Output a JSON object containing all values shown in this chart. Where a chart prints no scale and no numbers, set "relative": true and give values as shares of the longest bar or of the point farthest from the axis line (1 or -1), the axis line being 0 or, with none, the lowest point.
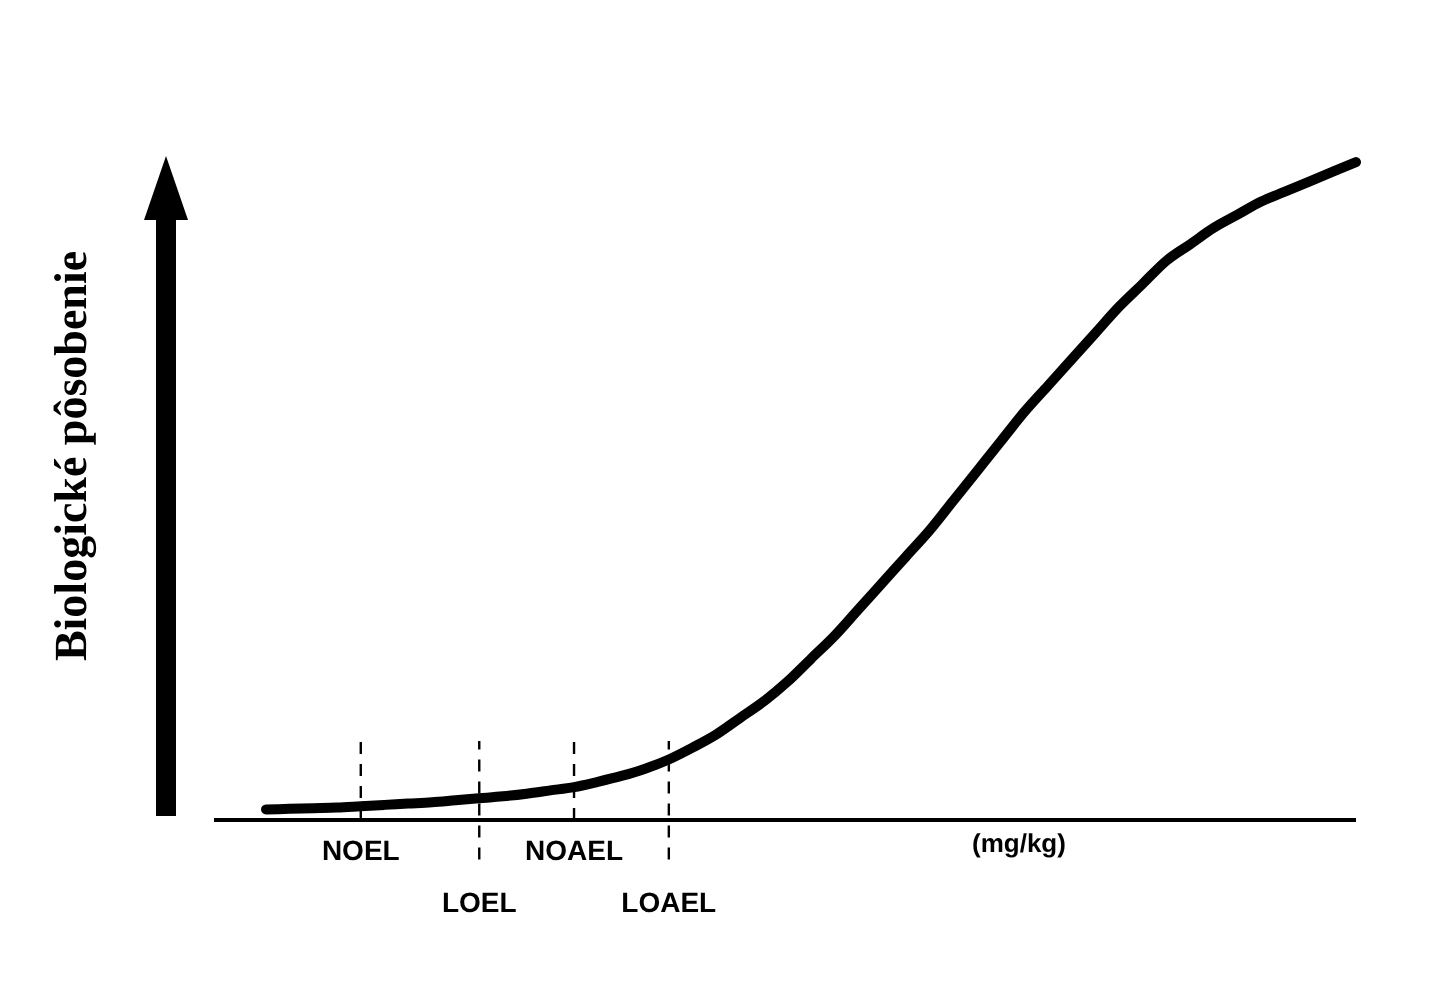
{
  "chart_data": {
    "type": "line",
    "relative": true,
    "ylabel": "Biologické pôsobenie",
    "xlabel": "(mg/kg)",
    "categories": [
      null,
      null,
      null,
      null,
      "NOEL",
      null,
      null,
      null,
      null,
      "LOEL",
      null,
      null,
      null,
      "NOAEL",
      null,
      null,
      null,
      "LOAEL",
      null,
      null,
      null,
      null,
      null,
      null,
      null,
      null,
      null,
      null,
      null,
      null,
      null,
      null,
      null,
      null,
      null,
      null,
      null,
      null,
      null,
      null,
      null,
      null,
      null,
      null,
      null,
      null,
      null
    ],
    "series": [
      {
        "color": "#000000",
        "values": [
          0.016,
          0.017,
          0.018,
          0.019,
          0.021,
          0.023,
          0.025,
          0.027,
          0.03,
          0.033,
          0.036,
          0.04,
          0.045,
          0.05,
          0.058,
          0.067,
          0.078,
          0.092,
          0.11,
          0.13,
          0.155,
          0.18,
          0.21,
          0.245,
          0.28,
          0.32,
          0.36,
          0.4,
          0.44,
          0.485,
          0.53,
          0.575,
          0.62,
          0.66,
          0.7,
          0.74,
          0.78,
          0.815,
          0.85,
          0.875,
          0.9,
          0.92,
          0.94,
          0.955,
          0.97,
          0.985,
          1
        ]
      }
    ],
    "ref_lines": [
      {
        "axis": "x",
        "value": "NOEL",
        "line_style": "dashed"
      },
      {
        "axis": "x",
        "value": "LOEL",
        "line_style": "dashed"
      },
      {
        "axis": "x",
        "value": "NOAEL",
        "line_style": "dashed"
      },
      {
        "axis": "x",
        "value": "LOAEL",
        "line_style": "dashed"
      }
    ],
    "marker": "none",
    "line_style": "solid",
    "grid": false,
    "legend": false
  }
}
